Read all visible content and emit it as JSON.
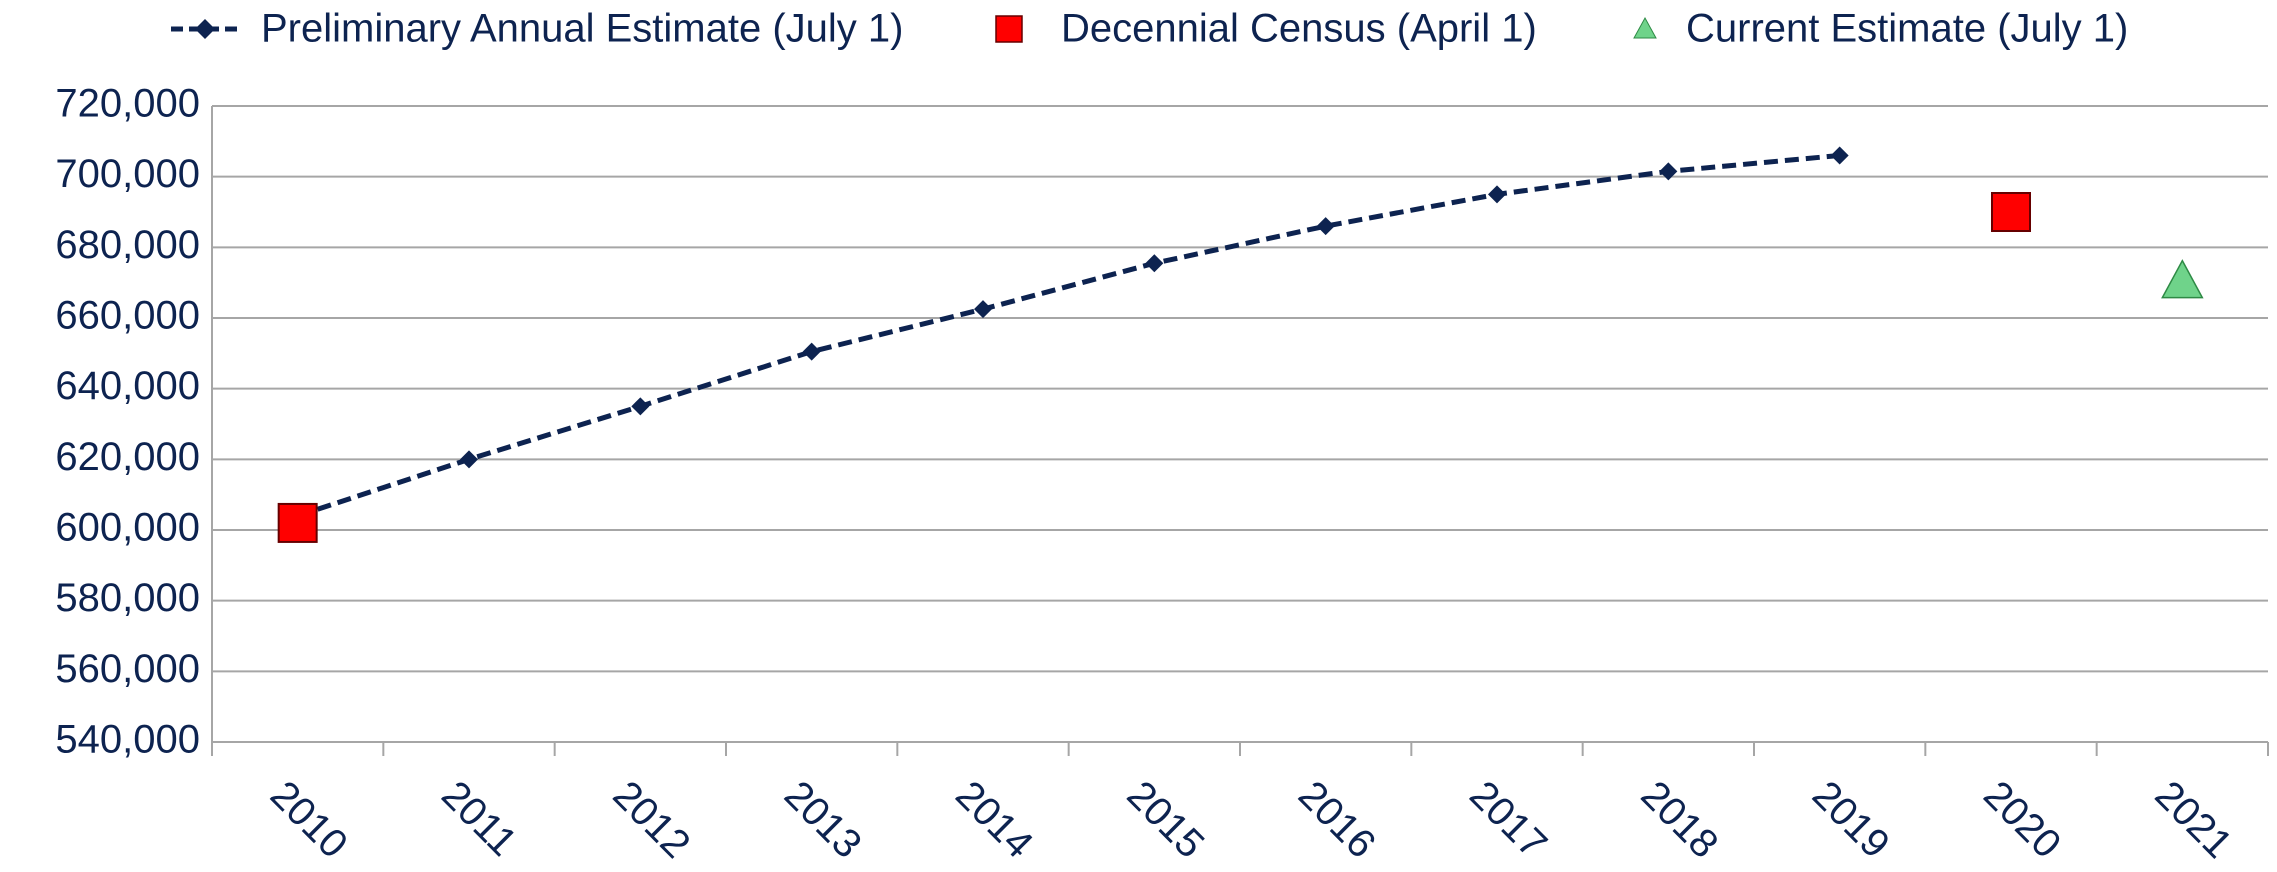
{
  "chart_data": {
    "type": "line",
    "categories": [
      "2010",
      "2011",
      "2012",
      "2013",
      "2014",
      "2015",
      "2016",
      "2017",
      "2018",
      "2019",
      "2020",
      "2021"
    ],
    "series": [
      {
        "name": "Preliminary Annual Estimate (July 1)",
        "color": "#0d2350",
        "marker": "diamond",
        "line": "dashed",
        "values": [
          604000,
          620000,
          635000,
          650500,
          662500,
          675500,
          686000,
          695000,
          701500,
          706000,
          null,
          null
        ]
      },
      {
        "name": "Decennial Census (April 1)",
        "color": "#ff0000",
        "marker": "square",
        "line": "none",
        "values": [
          602000,
          null,
          null,
          null,
          null,
          null,
          null,
          null,
          null,
          null,
          690000,
          null
        ]
      },
      {
        "name": "Current Estimate (July 1)",
        "color": "#6fd38a",
        "marker": "triangle",
        "line": "none",
        "values": [
          null,
          null,
          null,
          null,
          null,
          null,
          null,
          null,
          null,
          null,
          null,
          670000
        ]
      }
    ],
    "ylim": [
      540000,
      720000
    ],
    "yticks": [
      {
        "value": 540000,
        "label": "540,000"
      },
      {
        "value": 560000,
        "label": "560,000"
      },
      {
        "value": 580000,
        "label": "580,000"
      },
      {
        "value": 600000,
        "label": "600,000"
      },
      {
        "value": 620000,
        "label": "620,000"
      },
      {
        "value": 640000,
        "label": "640,000"
      },
      {
        "value": 660000,
        "label": "660,000"
      },
      {
        "value": 680000,
        "label": "680,000"
      },
      {
        "value": 700000,
        "label": "700,000"
      },
      {
        "value": 720000,
        "label": "720,000"
      }
    ],
    "grid": true,
    "legend": "top"
  }
}
